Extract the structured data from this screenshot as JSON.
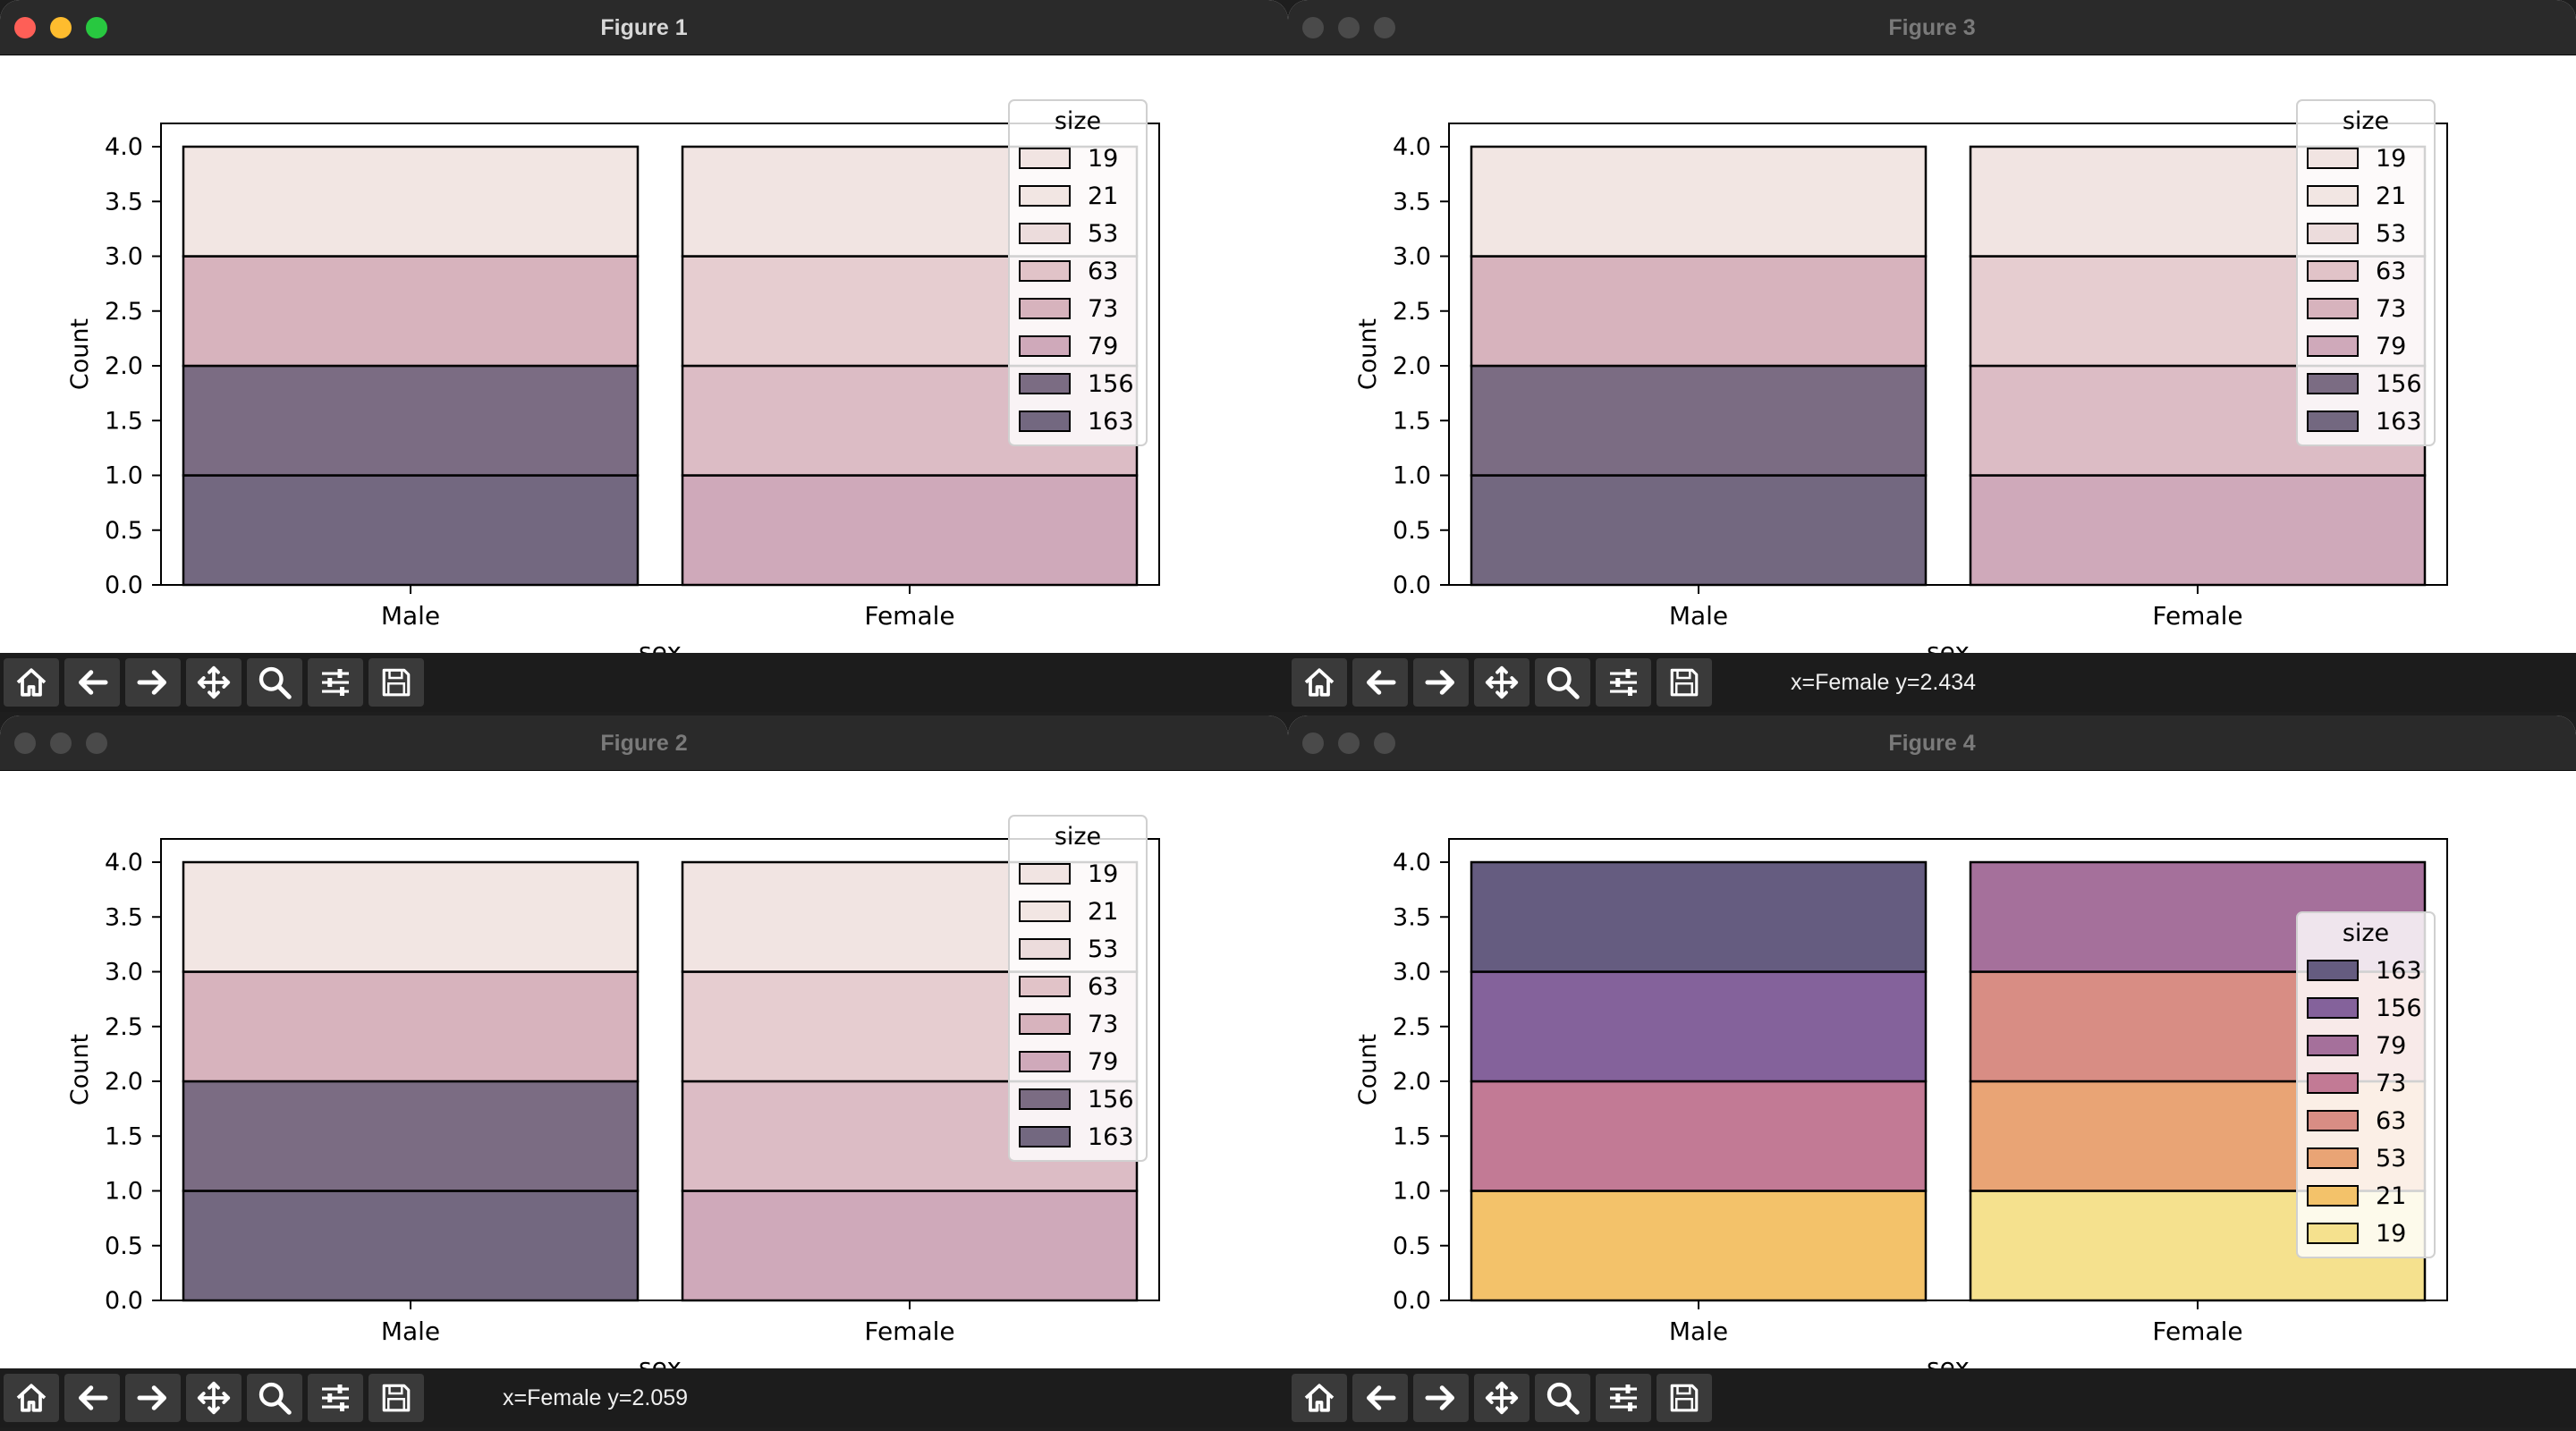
{
  "windows": [
    {
      "id": "fig1",
      "title": "Figure 1",
      "active": true,
      "status": "",
      "chart_data": {
        "type": "bar",
        "stacked": true,
        "categories": [
          "Male",
          "Female"
        ],
        "xlabel": "sex",
        "ylabel": "Count",
        "ylim": [
          0,
          4.0
        ],
        "yticks": [
          "0.0",
          "0.5",
          "1.0",
          "1.5",
          "2.0",
          "2.5",
          "3.0",
          "3.5",
          "4.0"
        ],
        "grid": false,
        "legend_title": "size",
        "legend_position": "top-right",
        "legend": [
          {
            "label": "19",
            "color": "#f1e4e2"
          },
          {
            "label": "21",
            "color": "#f2e6e3"
          },
          {
            "label": "53",
            "color": "#ecdcdc"
          },
          {
            "label": "63",
            "color": "#e1c3c8"
          },
          {
            "label": "73",
            "color": "#d7b3bd"
          },
          {
            "label": "79",
            "color": "#cfa9ba"
          },
          {
            "label": "156",
            "color": "#7b6c83"
          },
          {
            "label": "163",
            "color": "#736880"
          }
        ],
        "stacks": [
          {
            "category": "Male",
            "segments": [
              {
                "size": "163",
                "from": 0,
                "to": 1,
                "color": "#736880"
              },
              {
                "size": "156",
                "from": 1,
                "to": 2,
                "color": "#7b6c83"
              },
              {
                "size": "73",
                "from": 2,
                "to": 3,
                "color": "#d7b3bd"
              },
              {
                "size": "21",
                "from": 3,
                "to": 4,
                "color": "#f2e6e3"
              }
            ]
          },
          {
            "category": "Female",
            "segments": [
              {
                "size": "79",
                "from": 0,
                "to": 1,
                "color": "#cfa9ba"
              },
              {
                "size": "63",
                "from": 1,
                "to": 2,
                "color": "#dcbcc5"
              },
              {
                "size": "53",
                "from": 2,
                "to": 3,
                "color": "#e6cdd0"
              },
              {
                "size": "19",
                "from": 3,
                "to": 4,
                "color": "#f1e4e2"
              }
            ]
          }
        ]
      }
    },
    {
      "id": "fig3",
      "title": "Figure 3",
      "active": false,
      "status": "x=Female y=2.434",
      "chart_data": {
        "type": "bar",
        "stacked": true,
        "categories": [
          "Male",
          "Female"
        ],
        "xlabel": "sex",
        "ylabel": "Count",
        "ylim": [
          0,
          4.0
        ],
        "yticks": [
          "0.0",
          "0.5",
          "1.0",
          "1.5",
          "2.0",
          "2.5",
          "3.0",
          "3.5",
          "4.0"
        ],
        "grid": false,
        "legend_title": "size",
        "legend_position": "top-right",
        "legend": [
          {
            "label": "19",
            "color": "#f1e4e2"
          },
          {
            "label": "21",
            "color": "#f2e6e3"
          },
          {
            "label": "53",
            "color": "#ecdcdc"
          },
          {
            "label": "63",
            "color": "#e1c3c8"
          },
          {
            "label": "73",
            "color": "#d7b3bd"
          },
          {
            "label": "79",
            "color": "#cfa9ba"
          },
          {
            "label": "156",
            "color": "#7b6c83"
          },
          {
            "label": "163",
            "color": "#736880"
          }
        ],
        "stacks": [
          {
            "category": "Male",
            "segments": [
              {
                "size": "163",
                "from": 0,
                "to": 1,
                "color": "#736880"
              },
              {
                "size": "156",
                "from": 1,
                "to": 2,
                "color": "#7b6c83"
              },
              {
                "size": "73",
                "from": 2,
                "to": 3,
                "color": "#d7b3bd"
              },
              {
                "size": "21",
                "from": 3,
                "to": 4,
                "color": "#f2e6e3"
              }
            ]
          },
          {
            "category": "Female",
            "segments": [
              {
                "size": "79",
                "from": 0,
                "to": 1,
                "color": "#cfa9ba"
              },
              {
                "size": "63",
                "from": 1,
                "to": 2,
                "color": "#dcbcc5"
              },
              {
                "size": "53",
                "from": 2,
                "to": 3,
                "color": "#e6cdd0"
              },
              {
                "size": "19",
                "from": 3,
                "to": 4,
                "color": "#f1e4e2"
              }
            ]
          }
        ]
      }
    },
    {
      "id": "fig2",
      "title": "Figure 2",
      "active": false,
      "status": "x=Female y=2.059",
      "chart_data": {
        "type": "bar",
        "stacked": true,
        "categories": [
          "Male",
          "Female"
        ],
        "xlabel": "sex",
        "ylabel": "Count",
        "ylim": [
          0,
          4.0
        ],
        "yticks": [
          "0.0",
          "0.5",
          "1.0",
          "1.5",
          "2.0",
          "2.5",
          "3.0",
          "3.5",
          "4.0"
        ],
        "grid": false,
        "legend_title": "size",
        "legend_position": "top-right",
        "legend": [
          {
            "label": "19",
            "color": "#f1e4e2"
          },
          {
            "label": "21",
            "color": "#f2e6e3"
          },
          {
            "label": "53",
            "color": "#ecdcdc"
          },
          {
            "label": "63",
            "color": "#e1c3c8"
          },
          {
            "label": "73",
            "color": "#d7b3bd"
          },
          {
            "label": "79",
            "color": "#cfa9ba"
          },
          {
            "label": "156",
            "color": "#7b6c83"
          },
          {
            "label": "163",
            "color": "#736880"
          }
        ],
        "stacks": [
          {
            "category": "Male",
            "segments": [
              {
                "size": "163",
                "from": 0,
                "to": 1,
                "color": "#736880"
              },
              {
                "size": "156",
                "from": 1,
                "to": 2,
                "color": "#7b6c83"
              },
              {
                "size": "73",
                "from": 2,
                "to": 3,
                "color": "#d7b3bd"
              },
              {
                "size": "21",
                "from": 3,
                "to": 4,
                "color": "#f2e6e3"
              }
            ]
          },
          {
            "category": "Female",
            "segments": [
              {
                "size": "79",
                "from": 0,
                "to": 1,
                "color": "#cfa9ba"
              },
              {
                "size": "63",
                "from": 1,
                "to": 2,
                "color": "#dcbcc5"
              },
              {
                "size": "53",
                "from": 2,
                "to": 3,
                "color": "#e6cdd0"
              },
              {
                "size": "19",
                "from": 3,
                "to": 4,
                "color": "#f1e4e2"
              }
            ]
          }
        ]
      }
    },
    {
      "id": "fig4",
      "title": "Figure 4",
      "active": false,
      "status": "",
      "chart_data": {
        "type": "bar",
        "stacked": true,
        "categories": [
          "Male",
          "Female"
        ],
        "xlabel": "sex",
        "ylabel": "Count",
        "ylim": [
          0,
          4.0
        ],
        "yticks": [
          "0.0",
          "0.5",
          "1.0",
          "1.5",
          "2.0",
          "2.5",
          "3.0",
          "3.5",
          "4.0"
        ],
        "grid": false,
        "legend_title": "size",
        "legend_position": "center-right",
        "legend": [
          {
            "label": "163",
            "color": "#655c80"
          },
          {
            "label": "156",
            "color": "#84629b"
          },
          {
            "label": "79",
            "color": "#a5709b"
          },
          {
            "label": "73",
            "color": "#c27a95"
          },
          {
            "label": "63",
            "color": "#d88d84"
          },
          {
            "label": "53",
            "color": "#e9a475"
          },
          {
            "label": "21",
            "color": "#f3c26a"
          },
          {
            "label": "19",
            "color": "#f5e18e"
          }
        ],
        "stacks": [
          {
            "category": "Male",
            "segments": [
              {
                "size": "21",
                "from": 0,
                "to": 1,
                "color": "#f3c26a"
              },
              {
                "size": "73",
                "from": 1,
                "to": 2,
                "color": "#c27a95"
              },
              {
                "size": "156",
                "from": 2,
                "to": 3,
                "color": "#84629b"
              },
              {
                "size": "163",
                "from": 3,
                "to": 4,
                "color": "#655c80"
              }
            ]
          },
          {
            "category": "Female",
            "segments": [
              {
                "size": "19",
                "from": 0,
                "to": 1,
                "color": "#f5e18e"
              },
              {
                "size": "53",
                "from": 1,
                "to": 2,
                "color": "#e9a475"
              },
              {
                "size": "63",
                "from": 2,
                "to": 3,
                "color": "#d88d84"
              },
              {
                "size": "79",
                "from": 3,
                "to": 4,
                "color": "#a5709b"
              }
            ]
          }
        ]
      }
    }
  ],
  "toolbar_buttons": [
    {
      "name": "home-button",
      "icon": "home-icon"
    },
    {
      "name": "back-button",
      "icon": "arrow-left-icon"
    },
    {
      "name": "forward-button",
      "icon": "arrow-right-icon"
    },
    {
      "name": "pan-button",
      "icon": "move-icon"
    },
    {
      "name": "zoom-button",
      "icon": "magnifier-icon"
    },
    {
      "name": "configure-subplots-button",
      "icon": "sliders-icon"
    },
    {
      "name": "save-button",
      "icon": "save-icon"
    }
  ]
}
